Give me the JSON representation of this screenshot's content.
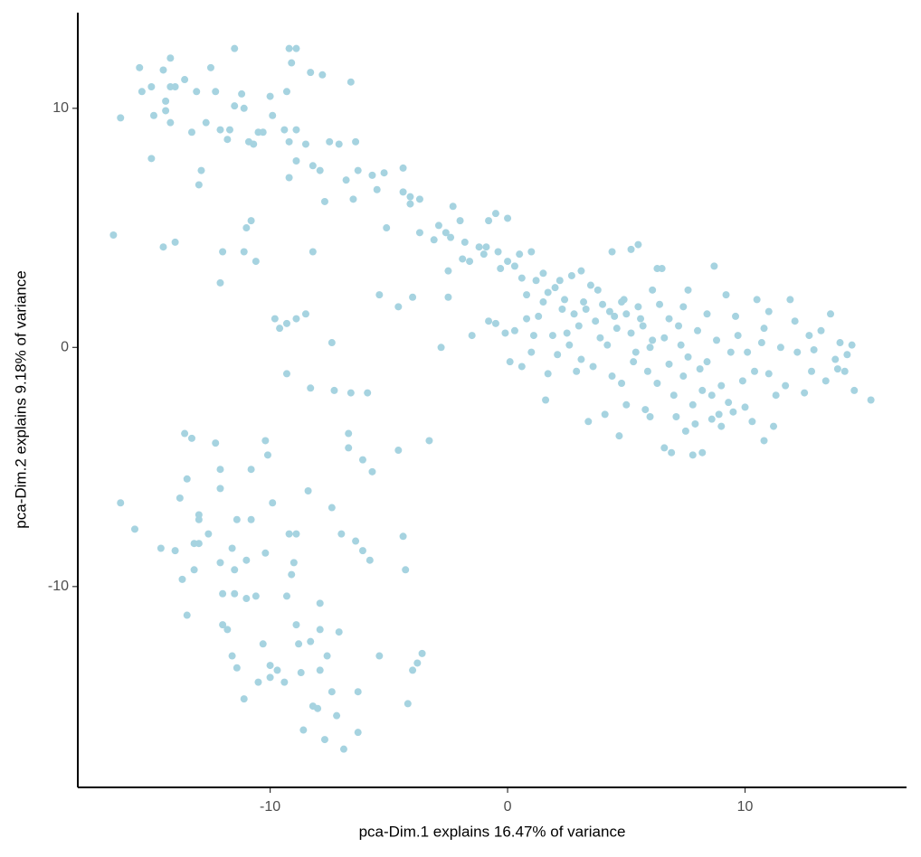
{
  "chart_data": {
    "type": "scatter",
    "x_label": "pca-Dim.1 explains 16.47% of variance",
    "y_label": "pca-Dim.2 explains 9.18% of variance",
    "color": "#a6d3e0",
    "xlim": [
      -18.1,
      16.8
    ],
    "ylim": [
      -18.4,
      14.0
    ],
    "xticks": [
      -10,
      0,
      10
    ],
    "yticks": [
      -10,
      0,
      10
    ],
    "grid": false,
    "x": [
      -16.6,
      -16.3,
      -15.5,
      -15.4,
      -15.0,
      -14.9,
      -15.0,
      -14.5,
      -14.4,
      -14.2,
      -14.2,
      -14.2,
      -14.4,
      -14.0,
      -14.5,
      -14.0,
      -13.6,
      -13.3,
      -13.1,
      -12.9,
      -13.0,
      -12.7,
      -12.5,
      -12.3,
      -12.1,
      -12.0,
      -12.1,
      -11.8,
      -11.7,
      -11.5,
      -11.5,
      -11.2,
      -11.1,
      -11.1,
      -11.0,
      -10.8,
      -10.6,
      -10.9,
      -10.7,
      -10.5,
      -10.3,
      -10.0,
      -9.9,
      -9.3,
      -9.2,
      -8.9,
      -9.1,
      -9.4,
      -9.2,
      -8.9,
      -8.5,
      -8.3,
      -7.8,
      -9.2,
      -8.9,
      -8.2,
      -7.9,
      -7.7,
      -7.5,
      -7.1,
      -6.8,
      -6.6,
      -6.4,
      -6.5,
      -6.3,
      -5.7,
      -5.2,
      -5.5,
      -4.4,
      -4.4,
      -4.1,
      -3.7,
      -4.1,
      -9.8,
      -9.6,
      -9.3,
      -8.9,
      -8.5,
      -8.2,
      -7.4,
      -5.4,
      -4.6,
      -4.0,
      -5.1,
      -3.7,
      -9.3,
      -8.3,
      -7.3,
      -6.6,
      -5.9,
      -3.1,
      -2.9,
      -2.6,
      -2.4,
      -2.3,
      -2.8,
      -2.5,
      -2.5,
      -2.0,
      -1.9,
      -1.6,
      -1.5,
      -1.2,
      -0.9,
      -0.8,
      -0.8,
      -0.5,
      -0.5,
      -0.3,
      -0.1,
      0.0,
      0.1,
      0.3,
      0.5,
      0.8,
      0.8,
      0.6,
      1.0,
      1.1,
      1.3,
      1.5,
      1.7,
      1.6,
      1.7,
      1.9,
      2.2,
      2.3,
      2.6,
      2.7,
      2.9,
      3.1,
      3.2,
      3.4,
      3.6,
      3.8,
      4.1,
      4.2,
      4.4,
      4.5,
      4.7,
      4.8,
      4.9,
      5.2,
      5.3,
      5.5,
      5.6,
      5.8,
      6.0,
      6.1,
      6.3,
      6.5,
      6.6,
      6.8,
      6.9,
      7.1,
      7.3,
      7.4,
      7.6,
      7.8,
      7.9,
      8.1,
      8.2,
      8.4,
      8.6,
      8.7,
      8.9,
      9.2,
      9.4,
      9.5,
      9.7,
      9.9,
      10.1,
      10.3,
      10.5,
      10.7,
      10.8,
      11.0,
      11.2,
      10.8,
      11.5,
      11.7,
      11.9,
      12.1,
      12.2,
      12.5,
      12.7,
      12.9,
      13.2,
      13.4,
      13.6,
      13.8,
      14.0,
      14.2,
      14.5,
      14.6,
      15.3,
      -16.3,
      -15.7,
      -14.6,
      -14.0,
      -13.8,
      -13.6,
      -13.3,
      -13.5,
      -13.7,
      -13.5,
      -13.2,
      -13.2,
      -13.0,
      -13.0,
      -13.0,
      -12.6,
      -12.3,
      -12.1,
      -12.1,
      -12.1,
      -12.0,
      -12.0,
      -11.8,
      -11.6,
      -11.4,
      -11.6,
      -11.5,
      -11.4,
      -11.5,
      -11.1,
      -11.0,
      -10.8,
      -11.0,
      -10.8,
      -10.6,
      -10.5,
      -10.2,
      -10.1,
      -10.2,
      -10.3,
      -10.0,
      -10.0,
      -9.9,
      -9.7,
      -9.4,
      -9.3,
      -9.2,
      -9.1,
      -9.0,
      -8.9,
      -8.9,
      -8.8,
      -8.7,
      -8.6,
      -8.4,
      -8.3,
      -8.2,
      -8.0,
      -7.9,
      -7.9,
      -7.9,
      -7.7,
      -7.6,
      -7.4,
      -7.4,
      -7.2,
      -7.1,
      -7.0,
      -6.9,
      -6.7,
      -6.7,
      -6.4,
      -6.3,
      -6.3,
      -6.1,
      -6.1,
      -5.7,
      -5.8,
      -5.4,
      -4.6,
      -4.4,
      -4.3,
      -4.2,
      -4.0,
      -3.8,
      -3.6,
      -3.3,
      2.0,
      2.4,
      2.8,
      3.0,
      3.3,
      3.5,
      3.7,
      3.9,
      4.0,
      4.3,
      4.6,
      4.8,
      5.0,
      5.2,
      5.4,
      5.5,
      5.7,
      5.9,
      6.1,
      6.3,
      6.4,
      6.6,
      6.8,
      7.0,
      7.2,
      7.4,
      7.6,
      7.8,
      8.0,
      8.2,
      8.4,
      8.6,
      8.8,
      9.0,
      9.3,
      9.6,
      10.0,
      10.4,
      11.0,
      11.3,
      1.2,
      1.5,
      0.6,
      0.0,
      -0.4,
      -1.0,
      -1.8,
      2.1,
      2.5,
      3.1,
      4.4,
      5.0,
      6.0,
      7.5,
      9.0,
      12.8,
      13.9,
      14.3,
      1.0,
      0.3
    ],
    "y": [
      4.7,
      9.6,
      11.7,
      10.7,
      7.9,
      9.7,
      10.9,
      11.6,
      10.3,
      12.1,
      10.9,
      9.4,
      9.9,
      10.9,
      4.2,
      4.4,
      11.2,
      9.0,
      10.7,
      7.4,
      6.8,
      9.4,
      11.7,
      10.7,
      9.1,
      4.0,
      2.7,
      8.7,
      9.1,
      12.5,
      10.1,
      10.6,
      10.0,
      4.0,
      5.0,
      5.3,
      3.6,
      8.6,
      8.5,
      9.0,
      9.0,
      10.5,
      9.7,
      10.7,
      12.5,
      12.5,
      11.9,
      9.1,
      8.6,
      9.1,
      8.5,
      11.5,
      11.4,
      7.1,
      7.8,
      7.6,
      7.4,
      6.1,
      8.6,
      8.5,
      7.0,
      11.1,
      8.6,
      6.2,
      7.4,
      7.2,
      7.3,
      6.6,
      7.5,
      6.5,
      6.3,
      6.2,
      6.0,
      1.2,
      0.8,
      1.0,
      1.2,
      1.4,
      4.0,
      0.2,
      2.2,
      1.7,
      2.1,
      5.0,
      4.8,
      -1.1,
      -1.7,
      -1.8,
      -1.9,
      -1.9,
      4.5,
      5.1,
      4.8,
      4.6,
      5.9,
      0.0,
      3.2,
      2.1,
      5.3,
      3.7,
      3.6,
      0.5,
      4.2,
      4.2,
      1.1,
      5.3,
      5.6,
      1.0,
      3.3,
      0.6,
      5.4,
      -0.6,
      3.4,
      3.9,
      2.2,
      1.2,
      -0.8,
      4.0,
      0.5,
      1.3,
      3.1,
      2.3,
      -2.2,
      -1.1,
      0.5,
      2.8,
      1.6,
      0.1,
      3.0,
      -1.0,
      3.2,
      1.9,
      -3.1,
      -0.8,
      2.4,
      -2.8,
      0.1,
      4.0,
      1.3,
      -3.7,
      -1.5,
      2.0,
      4.1,
      -0.6,
      4.3,
      1.2,
      -2.6,
      0.0,
      2.4,
      3.3,
      3.3,
      -4.2,
      1.2,
      -4.4,
      -2.9,
      0.1,
      1.7,
      2.4,
      -4.5,
      -3.2,
      -0.9,
      -4.4,
      1.4,
      -2.0,
      3.4,
      -2.8,
      2.2,
      -0.2,
      -2.7,
      0.5,
      -1.4,
      -0.2,
      -3.1,
      2.0,
      0.2,
      0.8,
      -1.1,
      -3.3,
      -3.9,
      0.0,
      -1.6,
      2.0,
      1.1,
      -0.2,
      -1.9,
      0.5,
      -0.1,
      0.7,
      -1.4,
      1.4,
      -0.5,
      0.2,
      -1.0,
      0.1,
      -1.8,
      -2.2,
      -6.5,
      -7.6,
      -8.4,
      -8.5,
      -6.3,
      -3.6,
      -3.8,
      -5.5,
      -9.7,
      -11.2,
      -8.2,
      -9.3,
      -7.0,
      -7.2,
      -8.2,
      -7.8,
      -4.0,
      -5.1,
      -5.9,
      -9.0,
      -10.3,
      -11.6,
      -11.8,
      -12.9,
      -13.4,
      -8.4,
      -9.3,
      -7.2,
      -10.3,
      -14.7,
      -8.9,
      -5.1,
      -10.5,
      -7.2,
      -10.4,
      -14.0,
      -3.9,
      -4.5,
      -8.6,
      -12.4,
      -13.3,
      -13.8,
      -6.5,
      -13.5,
      -14.0,
      -10.4,
      -7.8,
      -9.5,
      -9.0,
      -7.8,
      -11.6,
      -12.4,
      -13.6,
      -16.0,
      -6.0,
      -12.3,
      -15.0,
      -15.1,
      -10.7,
      -11.8,
      -13.5,
      -16.4,
      -12.9,
      -6.7,
      -14.4,
      -15.4,
      -11.9,
      -7.8,
      -16.8,
      -3.6,
      -4.2,
      -8.1,
      -14.4,
      -16.1,
      -4.7,
      -8.5,
      -5.2,
      -8.9,
      -12.9,
      -4.3,
      -7.9,
      -9.3,
      -14.9,
      -13.5,
      -13.2,
      -12.8,
      -3.9,
      2.5,
      2.0,
      1.4,
      0.9,
      1.6,
      2.6,
      1.1,
      0.4,
      1.8,
      1.5,
      0.8,
      1.9,
      1.4,
      0.6,
      -0.2,
      1.7,
      0.9,
      -1.0,
      0.3,
      -1.5,
      1.8,
      0.4,
      -0.7,
      -2.0,
      0.9,
      -1.2,
      -0.4,
      -2.4,
      0.7,
      -1.8,
      -0.6,
      -3.0,
      0.3,
      -1.6,
      -2.3,
      1.3,
      -2.5,
      -1.0,
      1.5,
      -2.0,
      2.8,
      1.9,
      2.9,
      3.6,
      4.0,
      3.9,
      4.4,
      -0.3,
      0.6,
      -0.5,
      -1.2,
      -2.4,
      -2.9,
      -3.5,
      -3.3,
      -1.0,
      -0.9,
      -0.3,
      -0.2,
      0.7
    ]
  }
}
